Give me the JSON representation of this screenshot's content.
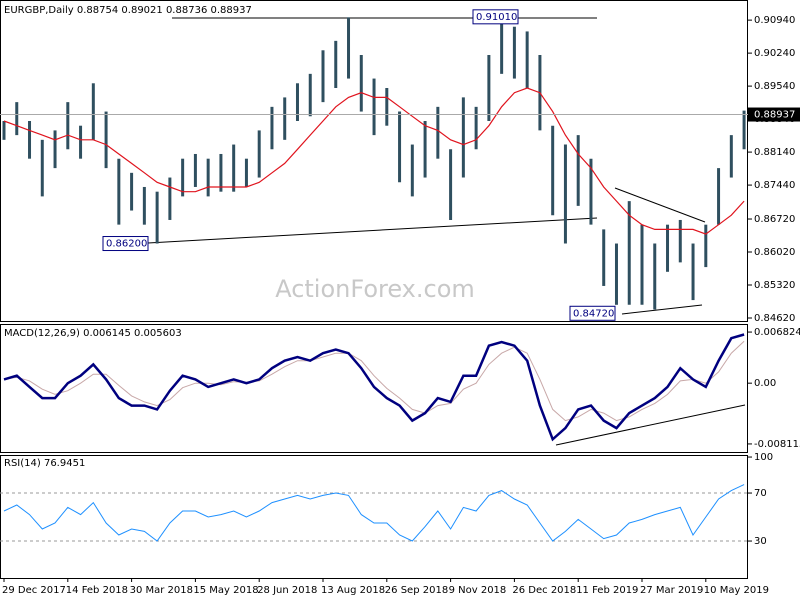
{
  "chart_data": [
    {
      "type": "range",
      "title": "EURGBP,Daily  0.88754 0.89021 0.88736 0.88937",
      "watermark": "ActionForex.com",
      "color": "#2f4f5f",
      "ma_color": "#e0141e",
      "categories": [
        "29 Dec 2017",
        null,
        null,
        null,
        null,
        "14 Feb 2018",
        null,
        null,
        null,
        null,
        "30 Mar 2018",
        null,
        null,
        null,
        null,
        "15 May 2018",
        null,
        null,
        null,
        null,
        "28 Jun 2018",
        null,
        null,
        null,
        null,
        "13 Aug 2018",
        null,
        null,
        null,
        null,
        "26 Sep 2018",
        null,
        null,
        null,
        null,
        "9 Nov 2018",
        null,
        null,
        null,
        null,
        "26 Dec 2018",
        null,
        null,
        null,
        null,
        "11 Feb 2019",
        null,
        null,
        null,
        null,
        "27 Mar 2019",
        null,
        null,
        null,
        null,
        "10 May 2019",
        null,
        null,
        null
      ],
      "high": [
        0.888,
        0.892,
        0.888,
        0.884,
        0.886,
        0.892,
        0.887,
        0.896,
        0.89,
        0.88,
        0.877,
        0.874,
        0.873,
        0.876,
        0.88,
        0.881,
        0.88,
        0.881,
        0.883,
        0.88,
        0.886,
        0.891,
        0.893,
        0.896,
        0.898,
        0.903,
        0.905,
        0.91,
        0.902,
        0.897,
        0.895,
        0.89,
        0.883,
        0.888,
        0.891,
        0.882,
        0.893,
        0.891,
        0.902,
        0.91,
        0.908,
        0.907,
        0.902,
        0.887,
        0.883,
        0.885,
        0.88,
        0.865,
        0.862,
        0.871,
        0.866,
        0.862,
        0.866,
        0.867,
        0.862,
        0.866,
        0.878,
        0.885,
        0.8902
      ],
      "low": [
        0.884,
        0.885,
        0.88,
        0.872,
        0.878,
        0.882,
        0.88,
        0.884,
        0.878,
        0.866,
        0.869,
        0.866,
        0.862,
        0.867,
        0.872,
        0.874,
        0.872,
        0.873,
        0.873,
        0.874,
        0.876,
        0.882,
        0.884,
        0.888,
        0.889,
        0.892,
        0.895,
        0.897,
        0.89,
        0.885,
        0.887,
        0.875,
        0.872,
        0.876,
        0.88,
        0.867,
        0.876,
        0.882,
        0.888,
        0.898,
        0.897,
        0.895,
        0.886,
        0.868,
        0.862,
        0.87,
        0.866,
        0.853,
        0.849,
        0.849,
        0.849,
        0.848,
        0.856,
        0.858,
        0.85,
        0.857,
        0.866,
        0.876,
        0.882
      ],
      "ma": [
        0.888,
        0.887,
        0.886,
        0.885,
        0.884,
        0.885,
        0.884,
        0.884,
        0.883,
        0.881,
        0.879,
        0.877,
        0.875,
        0.874,
        0.873,
        0.873,
        0.874,
        0.874,
        0.874,
        0.874,
        0.875,
        0.877,
        0.879,
        0.882,
        0.885,
        0.888,
        0.891,
        0.893,
        0.894,
        0.893,
        0.893,
        0.891,
        0.889,
        0.887,
        0.886,
        0.884,
        0.883,
        0.884,
        0.887,
        0.891,
        0.894,
        0.895,
        0.894,
        0.89,
        0.885,
        0.881,
        0.878,
        0.874,
        0.871,
        0.868,
        0.866,
        0.865,
        0.865,
        0.865,
        0.865,
        0.864,
        0.866,
        0.868,
        0.871
      ],
      "ylim": [
        0.84535,
        0.91367
      ],
      "yticks": [
        {
          "value": 0.9094,
          "label": "0.90940"
        },
        {
          "value": 0.9024,
          "label": "0.90240"
        },
        {
          "value": 0.8954,
          "label": "0.89540"
        },
        {
          "value": 0.8884,
          "label": "0.88840"
        },
        {
          "value": 0.8814,
          "label": "0.88140"
        },
        {
          "value": 0.8744,
          "label": "0.87440"
        },
        {
          "value": 0.8672,
          "label": "0.86720"
        },
        {
          "value": 0.8602,
          "label": "0.86020"
        },
        {
          "value": 0.8532,
          "label": "0.85320"
        },
        {
          "value": 0.8462,
          "label": "0.84620"
        }
      ],
      "last": {
        "value": 0.88937,
        "label": "0.88937"
      },
      "annotations": [
        {
          "value": 0.9101,
          "label": "0.91010"
        },
        {
          "value": 0.862,
          "label": "0.86200"
        },
        {
          "value": 0.8472,
          "label": "0.84720"
        }
      ]
    },
    {
      "type": "macd",
      "title": "MACD(12,26,9) 0.006145 0.005603",
      "color": "#00007f",
      "signal_color": "#c8a8a8",
      "macd": [
        0.0005,
        0.001,
        -0.0005,
        -0.002,
        -0.002,
        0.0,
        0.001,
        0.0025,
        0.0005,
        -0.002,
        -0.003,
        -0.003,
        -0.0035,
        -0.001,
        0.001,
        0.0005,
        -0.0005,
        0.0,
        0.0005,
        0.0,
        0.0005,
        0.002,
        0.003,
        0.0035,
        0.003,
        0.004,
        0.0045,
        0.004,
        0.002,
        -0.0005,
        -0.002,
        -0.003,
        -0.005,
        -0.004,
        -0.002,
        -0.0025,
        0.001,
        0.001,
        0.005,
        0.0055,
        0.005,
        0.003,
        -0.003,
        -0.0075,
        -0.006,
        -0.0035,
        -0.003,
        -0.005,
        -0.006,
        -0.004,
        -0.003,
        -0.002,
        -0.0005,
        0.002,
        0.0005,
        -0.0005,
        0.003,
        0.006,
        0.0065
      ],
      "signal": [
        0.0005,
        0.0008,
        0.0003,
        -0.0008,
        -0.0015,
        -0.001,
        0.0,
        0.0012,
        0.0012,
        -0.0003,
        -0.0017,
        -0.0025,
        -0.003,
        -0.0022,
        -0.0006,
        0.0,
        0.0,
        -0.0002,
        0.0002,
        0.0001,
        0.0003,
        0.0012,
        0.0022,
        0.003,
        0.003,
        0.0035,
        0.004,
        0.004,
        0.003,
        0.001,
        -0.0007,
        -0.002,
        -0.0035,
        -0.004,
        -0.003,
        -0.0027,
        -0.0008,
        0.0,
        0.0025,
        0.004,
        0.0048,
        0.004,
        0.0005,
        -0.0035,
        -0.005,
        -0.0045,
        -0.0035,
        -0.004,
        -0.005,
        -0.0045,
        -0.0035,
        -0.0027,
        -0.0015,
        0.0003,
        0.0005,
        0.0,
        0.0015,
        0.004,
        0.0056
      ],
      "ylim": [
        -0.00919,
        0.0079
      ],
      "yticks": [
        0.006824,
        {
          "value": 0,
          "label": "0.00"
        },
        -0.008113
      ]
    },
    {
      "type": "rsi",
      "title": "RSI(14) 76.9451",
      "color": "#1e90ff",
      "values": [
        55,
        60,
        52,
        40,
        45,
        58,
        52,
        62,
        45,
        35,
        40,
        38,
        30,
        45,
        55,
        55,
        50,
        52,
        55,
        50,
        55,
        62,
        65,
        68,
        65,
        68,
        70,
        68,
        52,
        45,
        45,
        35,
        30,
        42,
        55,
        40,
        58,
        55,
        68,
        72,
        65,
        60,
        45,
        30,
        38,
        48,
        40,
        32,
        35,
        45,
        48,
        52,
        55,
        58,
        35,
        50,
        65,
        72,
        77
      ],
      "ylim": [
        -0.8,
        101.7
      ],
      "yticks": [
        100,
        70,
        30
      ],
      "levels": [
        70,
        30
      ]
    }
  ]
}
